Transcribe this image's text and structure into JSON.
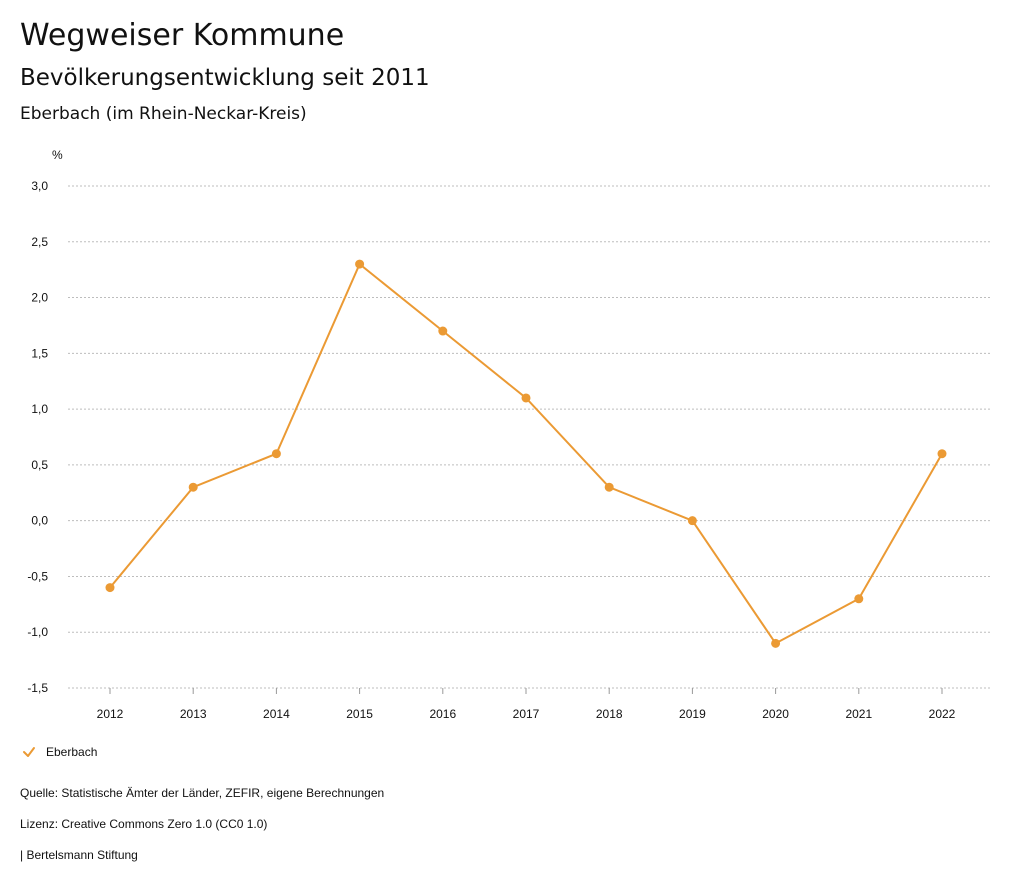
{
  "header": {
    "title": "Wegweiser Kommune",
    "subtitle": "Bevölkerungsentwicklung seit 2011",
    "region": "Eberbach (im Rhein-Neckar-Kreis)"
  },
  "chart_data": {
    "type": "line",
    "title": "Bevölkerungsentwicklung seit 2011",
    "ylabel": "%",
    "xlabel": "",
    "categories": [
      "2012",
      "2013",
      "2014",
      "2015",
      "2016",
      "2017",
      "2018",
      "2019",
      "2020",
      "2021",
      "2022"
    ],
    "series": [
      {
        "name": "Eberbach",
        "values": [
          -0.6,
          0.3,
          0.6,
          2.3,
          1.7,
          1.1,
          0.3,
          0.0,
          -1.1,
          -0.7,
          0.6
        ]
      }
    ],
    "ylim": [
      -1.5,
      3.0
    ],
    "yticks": [
      3.0,
      2.5,
      2.0,
      1.5,
      1.0,
      0.5,
      0.0,
      -0.5,
      -1.0,
      -1.5
    ],
    "ytick_labels": [
      "3,0",
      "2,5",
      "2,0",
      "1,5",
      "1,0",
      "0,5",
      "0,0",
      "-0,5",
      "-1,0",
      "-1,5"
    ],
    "grid": true,
    "legend": "bottom-left",
    "color": "#eb9a34"
  },
  "legend": {
    "label": "Eberbach"
  },
  "footer": {
    "source": "Quelle: Statistische Ämter der Länder, ZEFIR, eigene Berechnungen",
    "license": "Lizenz: Creative Commons Zero 1.0 (CC0 1.0)",
    "publisher": "| Bertelsmann Stiftung"
  }
}
